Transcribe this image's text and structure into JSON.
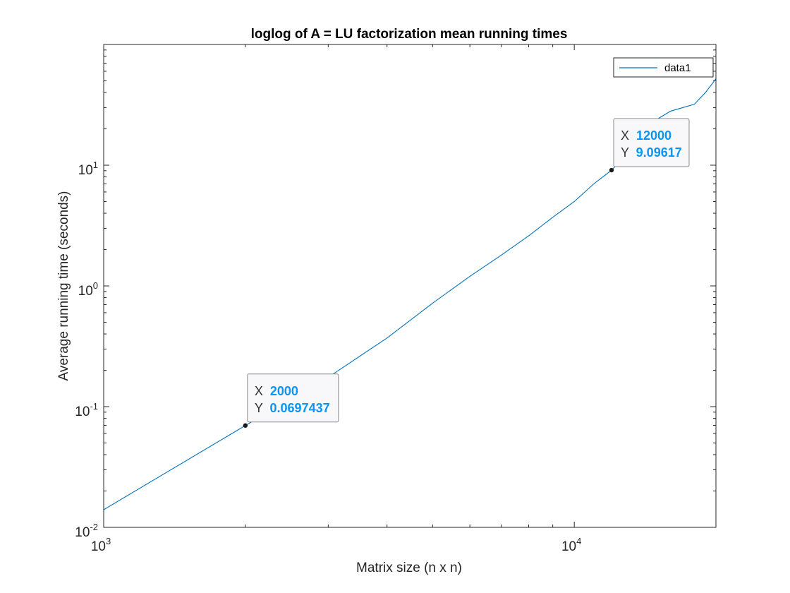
{
  "chart_data": {
    "type": "line",
    "title": "loglog of A = LU factorization mean running times",
    "xlabel": "Matrix size (n x n)",
    "ylabel": "Average running time (seconds)",
    "xscale": "log",
    "yscale": "log",
    "xlim": [
      1000,
      20000
    ],
    "ylim": [
      0.01,
      100
    ],
    "x_ticks": [
      {
        "base": "10",
        "exp": "3",
        "value": 1000
      },
      {
        "base": "10",
        "exp": "4",
        "value": 10000
      }
    ],
    "y_ticks": [
      {
        "base": "10",
        "exp": "-2",
        "value": 0.01
      },
      {
        "base": "10",
        "exp": "-1",
        "value": 0.1
      },
      {
        "base": "10",
        "exp": "0",
        "value": 1
      },
      {
        "base": "10",
        "exp": "1",
        "value": 10
      }
    ],
    "grid": false,
    "legend_position": "top-right",
    "series": [
      {
        "name": "data1",
        "color": "#0072bd",
        "x": [
          1000,
          2000,
          3000,
          4000,
          5000,
          6000,
          7000,
          8000,
          9000,
          10000,
          11000,
          12000,
          13000,
          14000,
          15000,
          16000,
          17000,
          18000,
          19000,
          20000
        ],
        "y": [
          0.014,
          0.0697437,
          0.175,
          0.37,
          0.72,
          1.2,
          1.8,
          2.6,
          3.7,
          5.0,
          7.0,
          9.09617,
          12.5,
          17.5,
          24,
          28,
          30,
          32,
          40,
          52
        ]
      }
    ],
    "datatips": [
      {
        "x_key": "X",
        "y_key": "Y",
        "x_text": "2000",
        "y_text": "0.0697437",
        "x": 2000,
        "y": 0.0697437
      },
      {
        "x_key": "X",
        "y_key": "Y",
        "x_text": "12000",
        "y_text": "9.09617",
        "x": 12000,
        "y": 9.09617
      }
    ]
  }
}
